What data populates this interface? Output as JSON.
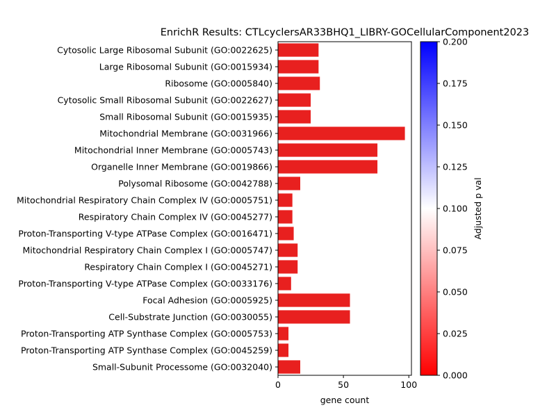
{
  "chart_data": {
    "type": "bar",
    "orientation": "horizontal",
    "title": "EnrichR Results: CTLcyclersAR33BHQ1_LIBRY-GOCellularComponent2023",
    "xlabel": "gene count",
    "ylabel": "",
    "xlim": [
      0,
      102
    ],
    "xticks": [
      "0",
      "50",
      "100"
    ],
    "categories": [
      "Cytosolic Large Ribosomal Subunit (GO:0022625)",
      "Large Ribosomal Subunit (GO:0015934)",
      "Ribosome (GO:0005840)",
      "Cytosolic Small Ribosomal Subunit (GO:0022627)",
      "Small Ribosomal Subunit (GO:0015935)",
      "Mitochondrial Membrane (GO:0031966)",
      "Mitochondrial Inner Membrane (GO:0005743)",
      "Organelle Inner Membrane (GO:0019866)",
      "Polysomal Ribosome (GO:0042788)",
      "Mitochondrial Respiratory Chain Complex IV (GO:0005751)",
      "Respiratory Chain Complex IV (GO:0045277)",
      "Proton-Transporting V-type ATPase Complex (GO:0016471)",
      "Mitochondrial Respiratory Chain Complex I (GO:0005747)",
      "Respiratory Chain Complex I (GO:0045271)",
      "Proton-Transporting V-type ATPase Complex (GO:0033176)",
      "Focal Adhesion (GO:0005925)",
      "Cell-Substrate Junction (GO:0030055)",
      "Proton-Transporting ATP Synthase Complex (GO:0005753)",
      "Proton-Transporting ATP Synthase Complex (GO:0045259)",
      "Small-Subunit Processome (GO:0032040)"
    ],
    "values": [
      31,
      31,
      32,
      25,
      25,
      97,
      76,
      76,
      17,
      11,
      11,
      12,
      15,
      15,
      10,
      55,
      55,
      8,
      8,
      17
    ],
    "adjusted_p_values": [
      0,
      0,
      0,
      0,
      0,
      0,
      0,
      0,
      0,
      0,
      0,
      0,
      0,
      0,
      0,
      0,
      0,
      0,
      0,
      0
    ],
    "bar_color": "#e8201f",
    "colorbar": {
      "label": "Adjusted p val",
      "range": [
        0.0,
        0.2
      ],
      "ticks": [
        "0.000",
        "0.025",
        "0.050",
        "0.075",
        "0.100",
        "0.125",
        "0.150",
        "0.175",
        "0.200"
      ],
      "colors": [
        "#ff0000",
        "#ffffff",
        "#0000ff"
      ]
    },
    "grid": false,
    "legend": "none"
  }
}
